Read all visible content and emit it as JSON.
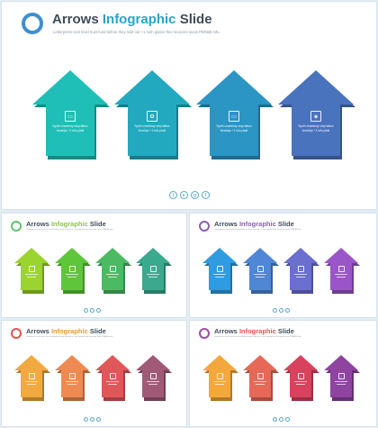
{
  "main": {
    "title_a": "Arrows ",
    "title_b": "Infographic",
    "title_c": " Slide",
    "subtitle": "Letterpress next level trust fund before they sold out +1 meh gluten-free locavore tacos PBR&B tofu.",
    "arrows": [
      {
        "color": "#1fbfb8",
        "icon": "tablet-icon",
        "glyph": "▭",
        "text": "Synth chambray vinyl tattoo brooklyn +1 tofu plaid"
      },
      {
        "color": "#22a9bf",
        "icon": "gear-icon",
        "glyph": "✿",
        "text": "Synth chambray vinyl tattoo brooklyn +1 tofu plaid"
      },
      {
        "color": "#2b95c4",
        "icon": "monitor-icon",
        "glyph": "▭",
        "text": "Synth chambray vinyl tattoo brooklyn +1 tofu plaid"
      },
      {
        "color": "#4a73bd",
        "icon": "layers-icon",
        "glyph": "◈",
        "text": "Synth chambray vinyl tattoo brooklyn +1 tofu plaid"
      }
    ],
    "social": [
      {
        "icon": "twitter-icon",
        "glyph": "t"
      },
      {
        "icon": "youtube-icon",
        "glyph": "▸"
      },
      {
        "icon": "google-plus-icon",
        "glyph": "g"
      },
      {
        "icon": "facebook-icon",
        "glyph": "f"
      }
    ]
  },
  "thumbs": [
    {
      "logo_color": "#5ec56a",
      "title_hl": "#8cc63f",
      "colors": [
        "#9bd42e",
        "#5ec63a",
        "#4cba63",
        "#3ba98e"
      ]
    },
    {
      "logo_color": "#8b5fb5",
      "title_hl": "#8b5fb5",
      "colors": [
        "#2f9be0",
        "#4f86d6",
        "#6a6fd0",
        "#9a56c8"
      ]
    },
    {
      "logo_color": "#e0544e",
      "title_hl": "#e89a3a",
      "colors": [
        "#f2a93f",
        "#ef8b52",
        "#e0575a",
        "#a05a78"
      ]
    },
    {
      "logo_color": "#a44aa6",
      "title_hl": "#e0574e",
      "colors": [
        "#f4a83c",
        "#e66957",
        "#d8425d",
        "#8e44a0"
      ]
    }
  ],
  "thumb_title_a": "Arrows ",
  "thumb_title_b": "Infographic",
  "thumb_title_c": " Slide",
  "thumb_subtitle": "Letterpress next level trust fund before they sold out +1 meh gluten-free locavore tacos PBR&B tofu."
}
